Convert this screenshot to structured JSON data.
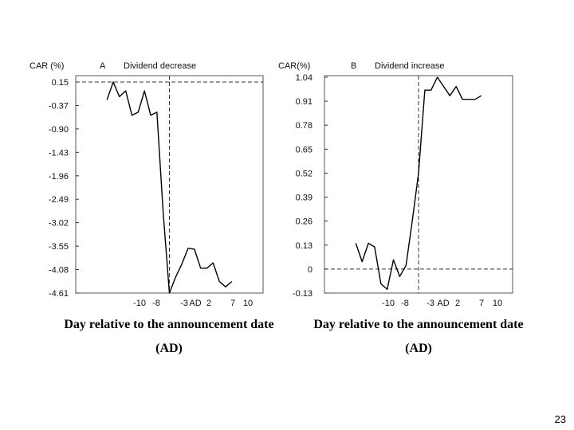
{
  "slide": {
    "page_number": "23"
  },
  "chart_data": [
    {
      "type": "line",
      "panel": "A",
      "title": "Dividend decrease",
      "ylabel": "CAR (%)",
      "xlabel": "Day relative to the announcement date (AD)",
      "ytick_labels": [
        "0.15",
        "-0.37",
        "-0.90",
        "-1.43",
        "-1.96",
        "-2.49",
        "-3.02",
        "-3.55",
        "-4.08",
        "-4.61"
      ],
      "xtick_labels": [
        "-10",
        "-8",
        "-3",
        "AD",
        "2",
        "7",
        "10"
      ],
      "ylim": [
        -4.61,
        0.15
      ],
      "xlim": [
        -15,
        15
      ],
      "reference_lines": {
        "horizontal_at": 0.15,
        "vertical_at_day": 0
      },
      "series": [
        {
          "x": [
            -10,
            -9,
            -8,
            -7,
            -6,
            -5,
            -4,
            -3,
            -2,
            -1,
            0,
            1,
            2,
            3,
            4,
            5,
            6,
            7,
            8,
            9,
            10
          ],
          "values": [
            -0.25,
            0.15,
            -0.18,
            -0.05,
            -0.6,
            -0.53,
            -0.05,
            -0.6,
            -0.53,
            -2.8,
            -4.61,
            -4.25,
            -3.95,
            -3.6,
            -3.62,
            -4.05,
            -4.05,
            -3.93,
            -4.35,
            -4.47,
            -4.35
          ]
        }
      ]
    },
    {
      "type": "line",
      "panel": "B",
      "title": "Dividend increase",
      "ylabel": "CAR(%)",
      "xlabel": "Day relative to the announcement date (AD)",
      "ytick_labels": [
        "1.04",
        "0.91",
        "0.78",
        "0.65",
        "0.52",
        "0.39",
        "0.26",
        "0.13",
        "0",
        "-0.13"
      ],
      "xtick_labels": [
        "-10",
        "-8",
        "-3",
        "AD",
        "2",
        "7",
        "10"
      ],
      "ylim": [
        -0.13,
        1.04
      ],
      "xlim": [
        -15,
        15
      ],
      "reference_lines": {
        "horizontal_at": 0,
        "vertical_at_day": 0
      },
      "series": [
        {
          "x": [
            -10,
            -9,
            -8,
            -7,
            -6,
            -5,
            -4,
            -3,
            -2,
            -1,
            0,
            1,
            2,
            3,
            4,
            5,
            6,
            7,
            8,
            9,
            10
          ],
          "values": [
            0.14,
            0.04,
            0.14,
            0.12,
            -0.08,
            -0.11,
            0.05,
            -0.04,
            0.02,
            0.26,
            0.52,
            0.97,
            0.97,
            1.04,
            0.99,
            0.94,
            0.99,
            0.92,
            0.92,
            0.92,
            0.94
          ]
        }
      ]
    }
  ]
}
